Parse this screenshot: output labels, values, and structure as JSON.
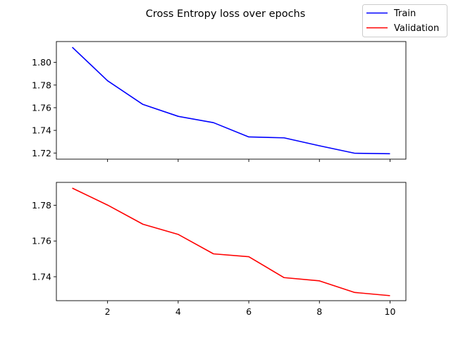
{
  "figure": {
    "title": "Cross Entropy loss over epochs"
  },
  "legend": {
    "placement": "top-right",
    "entries": [
      {
        "label": "Train",
        "color": "#0000ff"
      },
      {
        "label": "Validation",
        "color": "#ff0000"
      }
    ]
  },
  "chart_data": [
    {
      "type": "line",
      "title": "",
      "xlabel": "",
      "ylabel": "",
      "xlim": [
        0.55,
        10.45
      ],
      "ylim": [
        1.7146,
        1.8184
      ],
      "yticks": [
        1.72,
        1.74,
        1.76,
        1.78,
        1.8
      ],
      "ytick_labels": [
        "1.72",
        "1.74",
        "1.76",
        "1.78",
        "1.80"
      ],
      "xticks": [
        2,
        4,
        6,
        8,
        10
      ],
      "xtick_labels_shown": false,
      "grid": false,
      "series": [
        {
          "name": "Train",
          "color": "#0000ff",
          "x": [
            1,
            2,
            3,
            4,
            5,
            6,
            7,
            8,
            9,
            10
          ],
          "values": [
            1.8134,
            1.7838,
            1.7629,
            1.7524,
            1.7468,
            1.7342,
            1.7334,
            1.7264,
            1.7198,
            1.7194
          ]
        }
      ]
    },
    {
      "type": "line",
      "title": "",
      "xlabel": "",
      "ylabel": "",
      "xlim": [
        0.55,
        10.45
      ],
      "ylim": [
        1.7266,
        1.7928
      ],
      "yticks": [
        1.74,
        1.76,
        1.78
      ],
      "ytick_labels": [
        "1.74",
        "1.76",
        "1.78"
      ],
      "xticks": [
        2,
        4,
        6,
        8,
        10
      ],
      "xtick_labels": [
        "2",
        "4",
        "6",
        "8",
        "10"
      ],
      "xtick_labels_shown": true,
      "grid": false,
      "series": [
        {
          "name": "Validation",
          "color": "#ff0000",
          "x": [
            1,
            2,
            3,
            4,
            5,
            6,
            7,
            8,
            9,
            10
          ],
          "values": [
            1.7896,
            1.7801,
            1.7694,
            1.7637,
            1.7528,
            1.7512,
            1.7395,
            1.7377,
            1.7312,
            1.7294
          ]
        }
      ]
    }
  ]
}
